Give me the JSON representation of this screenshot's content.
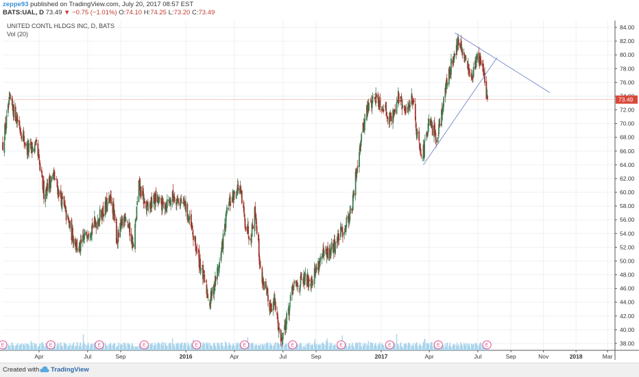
{
  "header": {
    "user": "zeppe93",
    "published": "published on TradingView.com, July 20, 2017 08:57 EST",
    "symbol": "BATS:UAL, D",
    "last": "73.49",
    "change_arrow": "▼",
    "change": "−0.75 (−1.01%)",
    "o_label": "O:",
    "o_value": "74.10",
    "h_label": "H:",
    "h_value": "74.25",
    "l_label": "L:",
    "l_value": "73.20",
    "c_label": "C:",
    "c_value": "73.49"
  },
  "pane": {
    "instrument": "UNITED CONTL HLDGS INC, D, BATS",
    "volume_indicator": "Vol (20)"
  },
  "footer": {
    "created_with": "Created with",
    "brand": "TradingView"
  },
  "colors": {
    "up": "#3d7a4e",
    "down": "#a0332a",
    "volume": "#a8d4ec",
    "trendline": "#7d8fd0",
    "price_line": "#e88d7a",
    "price_badge": "#d8483a",
    "earnings_marker": "#e0508a"
  },
  "icons": {
    "earnings": "earnings-e-marker",
    "brand": "tradingview-cloud-icon"
  },
  "chart_data": {
    "type": "candlestick",
    "title": "UNITED CONTL HLDGS INC, D, BATS",
    "x_range": [
      "2015-01-23",
      "2018-03-15"
    ],
    "ylim": [
      37,
      85
    ],
    "y_ticks": [
      "38.00",
      "40.00",
      "42.00",
      "44.00",
      "46.00",
      "48.00",
      "50.00",
      "52.00",
      "54.00",
      "56.00",
      "58.00",
      "60.00",
      "62.00",
      "64.00",
      "66.00",
      "68.00",
      "70.00",
      "72.00",
      "74.00",
      "76.00",
      "78.00",
      "80.00",
      "82.00",
      "84.00"
    ],
    "x_ticks": [
      {
        "date": "2015-04-01",
        "label": "Apr",
        "bold": false
      },
      {
        "date": "2015-07-01",
        "label": "Jul",
        "bold": false
      },
      {
        "date": "2015-09-01",
        "label": "Sep",
        "bold": false
      },
      {
        "date": "2016-01-01",
        "label": "2016",
        "bold": true
      },
      {
        "date": "2016-04-01",
        "label": "Apr",
        "bold": false
      },
      {
        "date": "2016-07-01",
        "label": "Jul",
        "bold": false
      },
      {
        "date": "2016-09-01",
        "label": "Sep",
        "bold": false
      },
      {
        "date": "2017-01-01",
        "label": "2017",
        "bold": true
      },
      {
        "date": "2017-04-01",
        "label": "Apr",
        "bold": false
      },
      {
        "date": "2017-07-01",
        "label": "Jul",
        "bold": false
      },
      {
        "date": "2017-09-01",
        "label": "Sep",
        "bold": false
      },
      {
        "date": "2017-11-01",
        "label": "Nov",
        "bold": false
      },
      {
        "date": "2018-01-01",
        "label": "2018",
        "bold": true
      },
      {
        "date": "2018-03-01",
        "label": "Mar",
        "bold": false
      }
    ],
    "price_path": [
      [
        "2015-01-23",
        67.0
      ],
      [
        "2015-02-05",
        73.3
      ],
      [
        "2015-02-20",
        70.5
      ],
      [
        "2015-03-10",
        66.2
      ],
      [
        "2015-03-27",
        66.5
      ],
      [
        "2015-04-10",
        60.0
      ],
      [
        "2015-04-28",
        62.5
      ],
      [
        "2015-05-15",
        58.5
      ],
      [
        "2015-06-01",
        54.0
      ],
      [
        "2015-06-15",
        51.5
      ],
      [
        "2015-07-01",
        54.5
      ],
      [
        "2015-07-15",
        55.5
      ],
      [
        "2015-08-01",
        57.5
      ],
      [
        "2015-08-15",
        59.0
      ],
      [
        "2015-08-25",
        53.0
      ],
      [
        "2015-09-10",
        57.0
      ],
      [
        "2015-09-25",
        52.0
      ],
      [
        "2015-10-05",
        61.0
      ],
      [
        "2015-10-20",
        57.5
      ],
      [
        "2015-11-05",
        59.0
      ],
      [
        "2015-11-20",
        58.0
      ],
      [
        "2015-12-10",
        59.5
      ],
      [
        "2015-12-31",
        58.0
      ],
      [
        "2016-01-20",
        52.0
      ],
      [
        "2016-02-05",
        47.0
      ],
      [
        "2016-02-15",
        44.0
      ],
      [
        "2016-03-05",
        50.0
      ],
      [
        "2016-03-20",
        58.0
      ],
      [
        "2016-04-10",
        61.0
      ],
      [
        "2016-04-20",
        56.0
      ],
      [
        "2016-05-01",
        53.5
      ],
      [
        "2016-05-10",
        57.5
      ],
      [
        "2016-05-20",
        48.5
      ],
      [
        "2016-06-05",
        43.5
      ],
      [
        "2016-06-15",
        44.0
      ],
      [
        "2016-06-27",
        38.5
      ],
      [
        "2016-07-08",
        41.5
      ],
      [
        "2016-07-20",
        46.0
      ],
      [
        "2016-08-05",
        47.0
      ],
      [
        "2016-08-25",
        47.5
      ],
      [
        "2016-09-10",
        50.5
      ],
      [
        "2016-09-25",
        51.0
      ],
      [
        "2016-10-10",
        53.0
      ],
      [
        "2016-10-25",
        55.0
      ],
      [
        "2016-11-08",
        58.0
      ],
      [
        "2016-11-20",
        66.0
      ],
      [
        "2016-12-05",
        72.0
      ],
      [
        "2016-12-20",
        74.0
      ],
      [
        "2017-01-05",
        72.5
      ],
      [
        "2017-01-20",
        70.5
      ],
      [
        "2017-02-01",
        74.0
      ],
      [
        "2017-02-15",
        71.5
      ],
      [
        "2017-03-01",
        74.0
      ],
      [
        "2017-03-10",
        68.0
      ],
      [
        "2017-03-20",
        65.5
      ],
      [
        "2017-04-01",
        70.0
      ],
      [
        "2017-04-15",
        68.0
      ],
      [
        "2017-04-28",
        73.5
      ],
      [
        "2017-05-10",
        78.0
      ],
      [
        "2017-05-25",
        82.0
      ],
      [
        "2017-06-05",
        79.5
      ],
      [
        "2017-06-20",
        77.0
      ],
      [
        "2017-07-01",
        80.0
      ],
      [
        "2017-07-10",
        78.0
      ],
      [
        "2017-07-15",
        75.0
      ],
      [
        "2017-07-19",
        73.49
      ]
    ],
    "last_price": 73.49,
    "volume_range": [
      0,
      8
    ],
    "trendlines": [
      {
        "from": [
          "2017-05-19",
          83.2
        ],
        "to": [
          "2017-11-13",
          74.5
        ],
        "label": "descending resistance"
      },
      {
        "from": [
          "2017-03-21",
          64.0
        ],
        "to": [
          "2017-08-06",
          79.6
        ],
        "label": "ascending support"
      }
    ],
    "earnings_dates": [
      "2015-01-23",
      "2015-04-23",
      "2015-07-23",
      "2015-10-15",
      "2016-01-21",
      "2016-04-20",
      "2016-07-19",
      "2016-10-18",
      "2017-01-17",
      "2017-04-18",
      "2017-07-18"
    ],
    "earnings_label": "E"
  }
}
